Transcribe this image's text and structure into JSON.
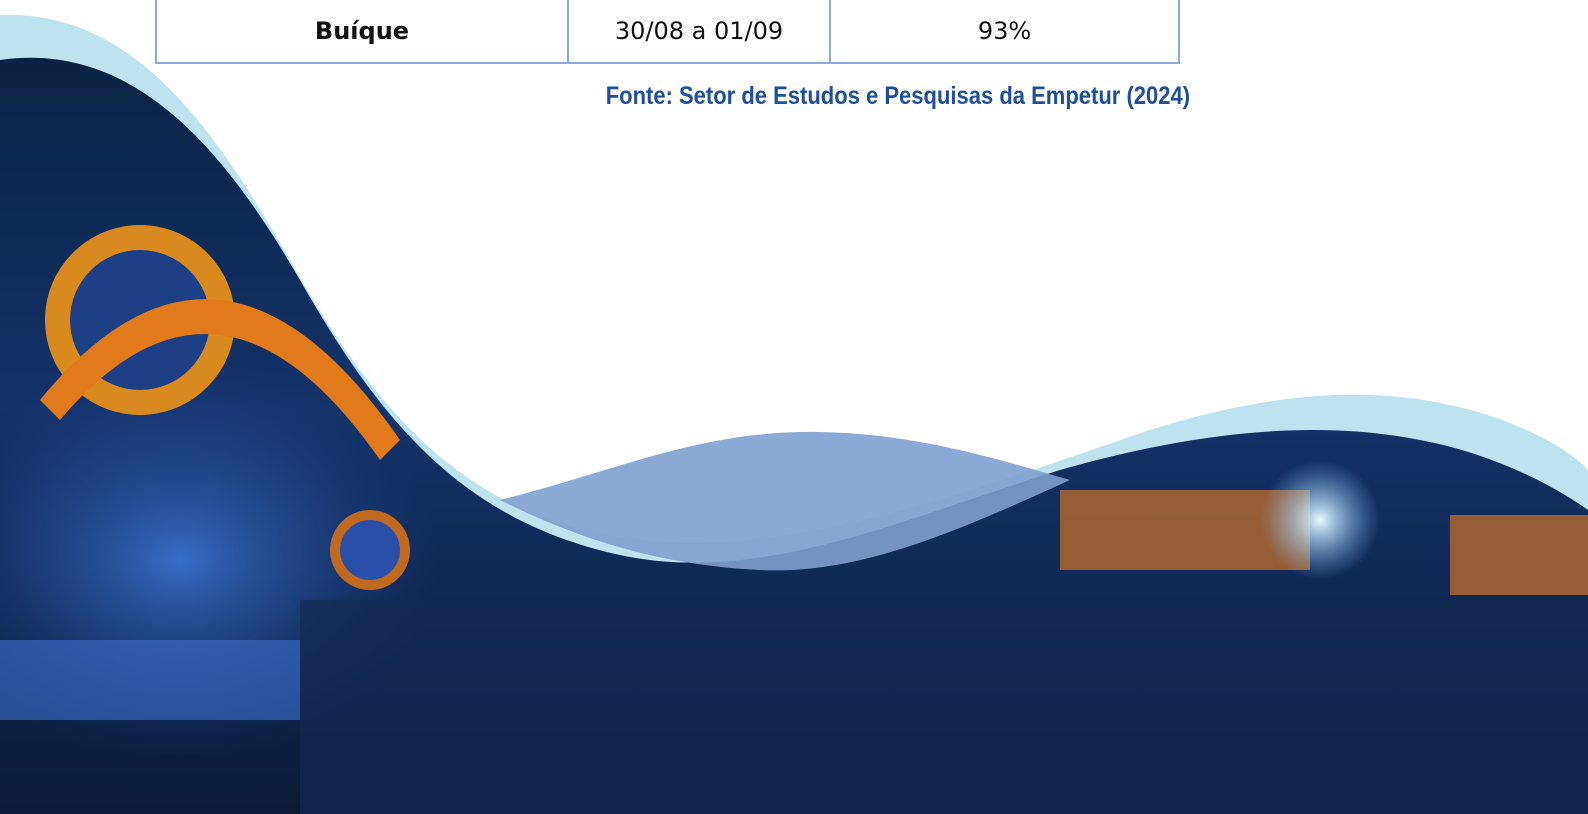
{
  "table": {
    "rows": [
      [
        "Buíque",
        "30/08 a 01/09",
        "93%"
      ]
    ]
  },
  "source": "Fonte: Setor de Estudos e Pesquisas da Empetur (2024)"
}
